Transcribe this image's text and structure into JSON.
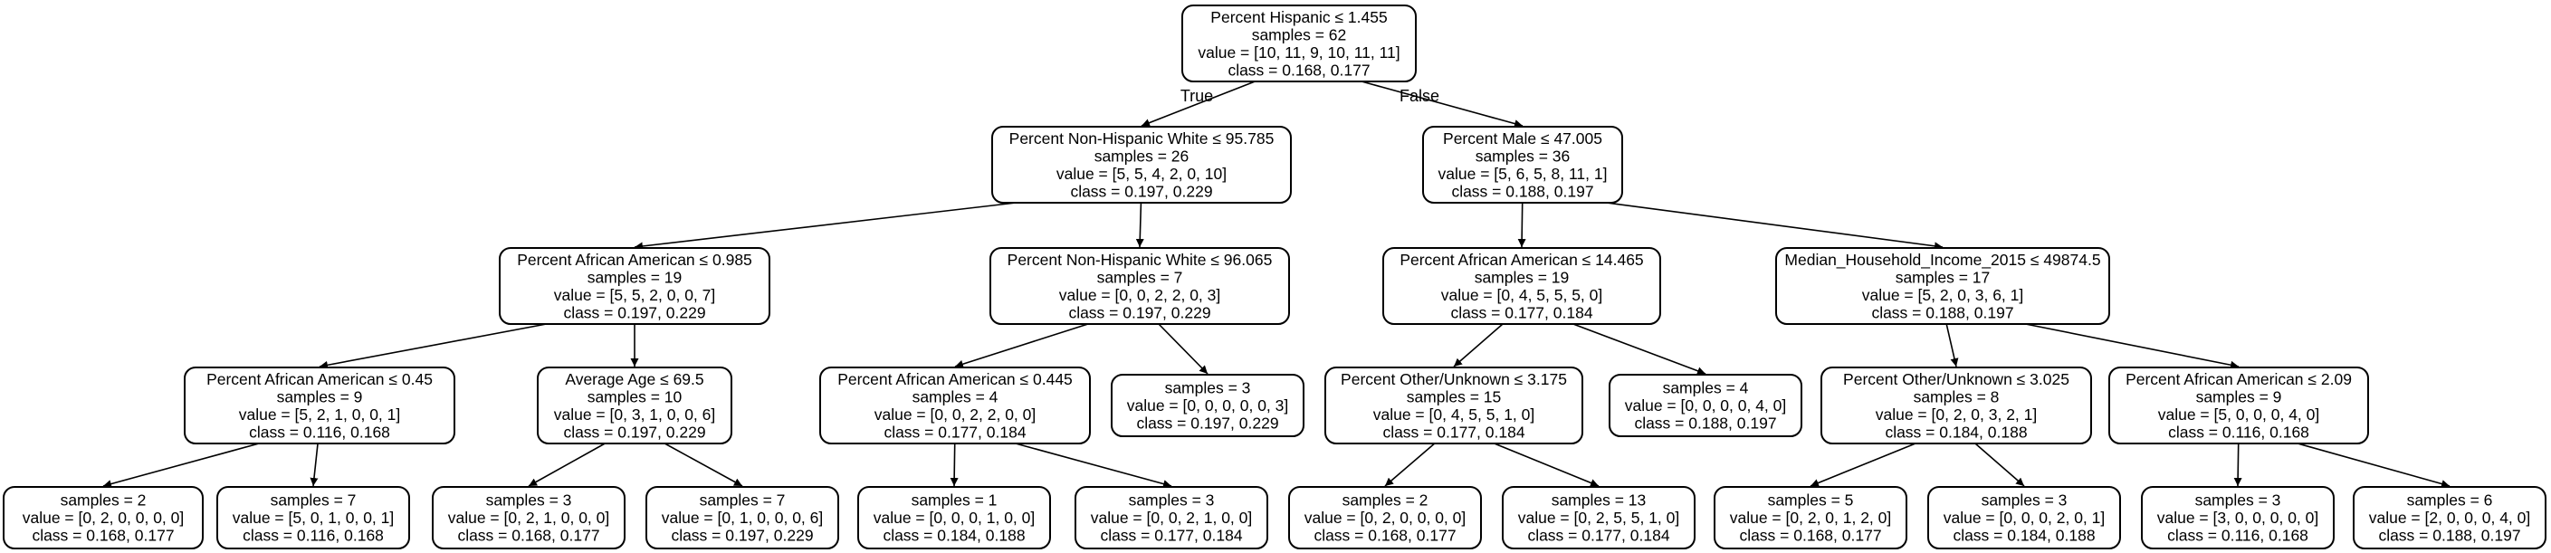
{
  "nodes": [
    {
      "id": "n0",
      "lines": [
        "Percent Hispanic ≤ 1.455",
        "samples = 62",
        "value = [10, 11, 9, 10, 11, 11]",
        "class = 0.168, 0.177"
      ]
    },
    {
      "id": "n1",
      "lines": [
        "Percent Non-Hispanic White ≤ 95.785",
        "samples = 26",
        "value = [5, 5, 4, 2, 0, 10]",
        "class = 0.197, 0.229"
      ]
    },
    {
      "id": "n2",
      "lines": [
        "Percent Male ≤ 47.005",
        "samples = 36",
        "value = [5, 6, 5, 8, 11, 1]",
        "class = 0.188, 0.197"
      ]
    },
    {
      "id": "n3",
      "lines": [
        "Percent African American ≤ 0.985",
        "samples = 19",
        "value = [5, 5, 2, 0, 0, 7]",
        "class = 0.197, 0.229"
      ]
    },
    {
      "id": "n4",
      "lines": [
        "Percent Non-Hispanic White ≤ 96.065",
        "samples = 7",
        "value = [0, 0, 2, 2, 0, 3]",
        "class = 0.197, 0.229"
      ]
    },
    {
      "id": "n5",
      "lines": [
        "Percent African American ≤ 14.465",
        "samples = 19",
        "value = [0, 4, 5, 5, 5, 0]",
        "class = 0.177, 0.184"
      ]
    },
    {
      "id": "n6",
      "lines": [
        "Median_Household_Income_2015 ≤ 49874.5",
        "samples = 17",
        "value = [5, 2, 0, 3, 6, 1]",
        "class = 0.188, 0.197"
      ]
    },
    {
      "id": "n7",
      "lines": [
        "Percent African American ≤ 0.45",
        "samples = 9",
        "value = [5, 2, 1, 0, 0, 1]",
        "class = 0.116, 0.168"
      ]
    },
    {
      "id": "n8",
      "lines": [
        "Average Age ≤ 69.5",
        "samples = 10",
        "value = [0, 3, 1, 0, 0, 6]",
        "class = 0.197, 0.229"
      ]
    },
    {
      "id": "n9",
      "lines": [
        "Percent African American ≤ 0.445",
        "samples = 4",
        "value = [0, 0, 2, 2, 0, 0]",
        "class = 0.177, 0.184"
      ]
    },
    {
      "id": "n10",
      "lines": [
        "samples = 3",
        "value = [0, 0, 0, 0, 0, 3]",
        "class = 0.197, 0.229"
      ]
    },
    {
      "id": "n11",
      "lines": [
        "Percent Other/Unknown ≤ 3.175",
        "samples = 15",
        "value = [0, 4, 5, 5, 1, 0]",
        "class = 0.177, 0.184"
      ]
    },
    {
      "id": "n12",
      "lines": [
        "samples = 4",
        "value = [0, 0, 0, 0, 4, 0]",
        "class = 0.188, 0.197"
      ]
    },
    {
      "id": "n13",
      "lines": [
        "Percent Other/Unknown ≤ 3.025",
        "samples = 8",
        "value = [0, 2, 0, 3, 2, 1]",
        "class = 0.184, 0.188"
      ]
    },
    {
      "id": "n14",
      "lines": [
        "Percent African American ≤ 2.09",
        "samples = 9",
        "value = [5, 0, 0, 0, 4, 0]",
        "class = 0.116, 0.168"
      ]
    },
    {
      "id": "n15",
      "lines": [
        "samples = 2",
        "value = [0, 2, 0, 0, 0, 0]",
        "class = 0.168, 0.177"
      ]
    },
    {
      "id": "n16",
      "lines": [
        "samples = 7",
        "value = [5, 0, 1, 0, 0, 1]",
        "class = 0.116, 0.168"
      ]
    },
    {
      "id": "n17",
      "lines": [
        "samples = 3",
        "value = [0, 2, 1, 0, 0, 0]",
        "class = 0.168, 0.177"
      ]
    },
    {
      "id": "n18",
      "lines": [
        "samples = 7",
        "value = [0, 1, 0, 0, 0, 6]",
        "class = 0.197, 0.229"
      ]
    },
    {
      "id": "n19",
      "lines": [
        "samples = 1",
        "value = [0, 0, 0, 1, 0, 0]",
        "class = 0.184, 0.188"
      ]
    },
    {
      "id": "n20",
      "lines": [
        "samples = 3",
        "value = [0, 0, 2, 1, 0, 0]",
        "class = 0.177, 0.184"
      ]
    },
    {
      "id": "n21",
      "lines": [
        "samples = 2",
        "value = [0, 2, 0, 0, 0, 0]",
        "class = 0.168, 0.177"
      ]
    },
    {
      "id": "n22",
      "lines": [
        "samples = 13",
        "value = [0, 2, 5, 5, 1, 0]",
        "class = 0.177, 0.184"
      ]
    },
    {
      "id": "n23",
      "lines": [
        "samples = 5",
        "value = [0, 2, 0, 1, 2, 0]",
        "class = 0.168, 0.177"
      ]
    },
    {
      "id": "n24",
      "lines": [
        "samples = 3",
        "value = [0, 0, 0, 2, 0, 1]",
        "class = 0.184, 0.188"
      ]
    },
    {
      "id": "n25",
      "lines": [
        "samples = 3",
        "value = [3, 0, 0, 0, 0, 0]",
        "class = 0.116, 0.168"
      ]
    },
    {
      "id": "n26",
      "lines": [
        "samples = 6",
        "value = [2, 0, 0, 0, 4, 0]",
        "class = 0.188, 0.197"
      ]
    }
  ],
  "edges": [
    {
      "from": "n0",
      "to": "n1",
      "label": "True"
    },
    {
      "from": "n0",
      "to": "n2",
      "label": "False"
    },
    {
      "from": "n1",
      "to": "n3"
    },
    {
      "from": "n1",
      "to": "n4"
    },
    {
      "from": "n2",
      "to": "n5"
    },
    {
      "from": "n2",
      "to": "n6"
    },
    {
      "from": "n3",
      "to": "n7"
    },
    {
      "from": "n3",
      "to": "n8"
    },
    {
      "from": "n4",
      "to": "n9"
    },
    {
      "from": "n4",
      "to": "n10"
    },
    {
      "from": "n5",
      "to": "n11"
    },
    {
      "from": "n5",
      "to": "n12"
    },
    {
      "from": "n6",
      "to": "n13"
    },
    {
      "from": "n6",
      "to": "n14"
    },
    {
      "from": "n7",
      "to": "n15"
    },
    {
      "from": "n7",
      "to": "n16"
    },
    {
      "from": "n8",
      "to": "n17"
    },
    {
      "from": "n8",
      "to": "n18"
    },
    {
      "from": "n9",
      "to": "n19"
    },
    {
      "from": "n9",
      "to": "n20"
    },
    {
      "from": "n11",
      "to": "n21"
    },
    {
      "from": "n11",
      "to": "n22"
    },
    {
      "from": "n13",
      "to": "n23"
    },
    {
      "from": "n13",
      "to": "n24"
    },
    {
      "from": "n14",
      "to": "n25"
    },
    {
      "from": "n14",
      "to": "n26"
    }
  ]
}
